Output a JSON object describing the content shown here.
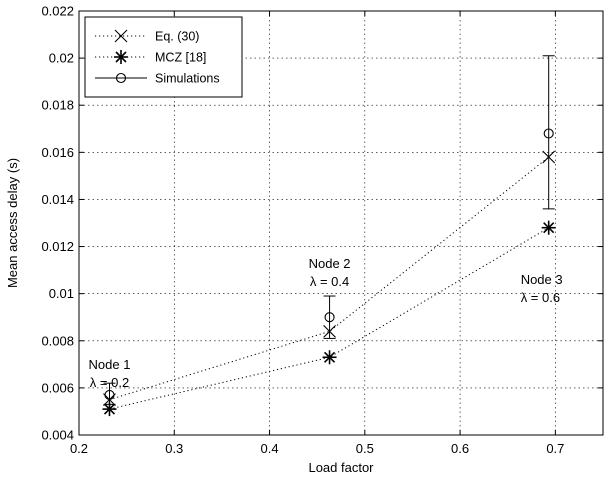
{
  "chart_data": {
    "type": "line",
    "xlabel": "Load factor",
    "ylabel": "Mean access delay (s)",
    "xlim": [
      0.2,
      0.75
    ],
    "ylim": [
      0.004,
      0.022
    ],
    "xticks": [
      0.2,
      0.3,
      0.4,
      0.5,
      0.6,
      0.7
    ],
    "yticks": [
      0.004,
      0.006,
      0.008,
      0.01,
      0.012,
      0.014,
      0.016,
      0.018,
      0.02,
      0.022
    ],
    "xtick_labels": [
      "0.2",
      "0.3",
      "0.4",
      "0.5",
      "0.6",
      "0.7"
    ],
    "ytick_labels": [
      "0.004",
      "0.006",
      "0.008",
      "0.01",
      "0.012",
      "0.014",
      "0.016",
      "0.018",
      "0.02",
      "0.022"
    ],
    "grid": true,
    "legend_position": "top-left",
    "x": [
      0.232,
      0.463,
      0.693
    ],
    "series": [
      {
        "name": "Eq. (30)",
        "values": [
          0.0055,
          0.0084,
          0.0158
        ],
        "marker": "x",
        "line": "dotted"
      },
      {
        "name": "MCZ [18]",
        "values": [
          0.0051,
          0.0073,
          0.0128
        ],
        "marker": "asterisk",
        "line": "dotted"
      },
      {
        "name": "Simulations",
        "values": [
          0.0057,
          0.009,
          0.0168
        ],
        "marker": "circle",
        "line": "none",
        "error_low": [
          0.0053,
          0.0081,
          0.0136
        ],
        "error_high": [
          0.0062,
          0.0099,
          0.0201
        ]
      }
    ],
    "annotations": [
      {
        "line1": "Node 1",
        "line2": "λ = 0.2"
      },
      {
        "line1": "Node 2",
        "line2": "λ = 0.4"
      },
      {
        "line1": "Node 3",
        "line2": "λ = 0.6"
      }
    ]
  }
}
